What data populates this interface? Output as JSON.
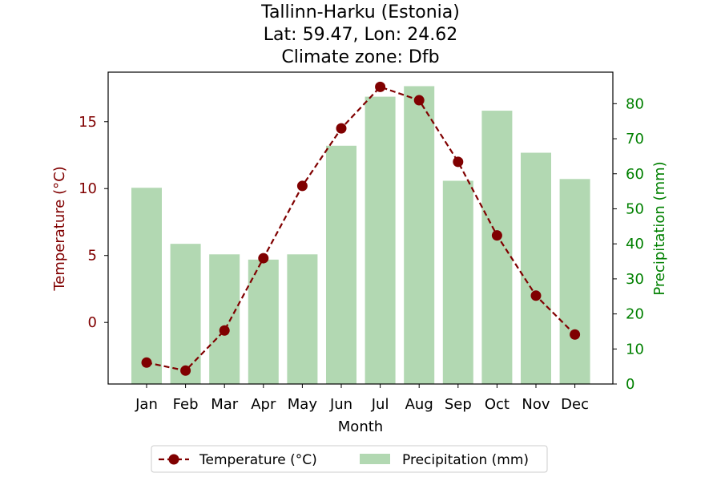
{
  "chart_data": {
    "type": "bar+line",
    "title_lines": [
      "Tallinn-Harku (Estonia)",
      "Lat: 59.47, Lon: 24.62",
      "Climate zone: Dfb"
    ],
    "xlabel": "Month",
    "ylabel_left": "Temperature (°C)",
    "ylabel_right": "Precipitation (mm)",
    "categories": [
      "Jan",
      "Feb",
      "Mar",
      "Apr",
      "May",
      "Jun",
      "Jul",
      "Aug",
      "Sep",
      "Oct",
      "Nov",
      "Dec"
    ],
    "temperature": {
      "name": "Temperature (°C)",
      "values": [
        -3.0,
        -3.6,
        -0.6,
        4.8,
        10.2,
        14.5,
        17.6,
        16.6,
        12.0,
        6.5,
        2.0,
        -0.9
      ],
      "ylim": [
        -4.6,
        18.7
      ],
      "yticks": [
        0,
        5,
        10,
        15
      ]
    },
    "precipitation": {
      "name": "Precipitation (mm)",
      "values": [
        56,
        40,
        37,
        35.5,
        37,
        68,
        82,
        85,
        58,
        78,
        66,
        58.5
      ],
      "ylim": [
        0,
        89
      ],
      "yticks": [
        0,
        10,
        20,
        30,
        40,
        50,
        60,
        70,
        80
      ]
    },
    "colors": {
      "temperature": "#800000",
      "precipitation_bar": "#b2d8b2",
      "right_axis": "#008000"
    },
    "legend_placement": "bottom-center"
  }
}
